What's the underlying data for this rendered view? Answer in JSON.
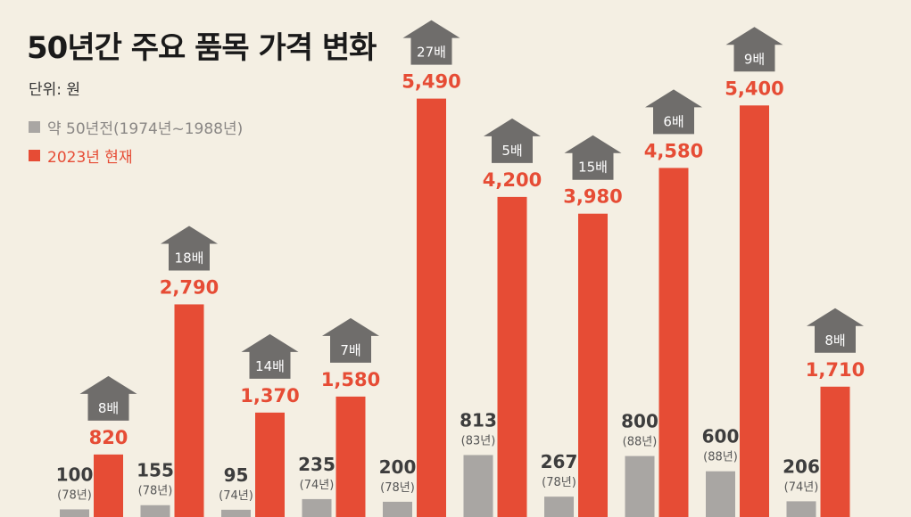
{
  "chart_data": {
    "type": "bar",
    "title": "50년간 주요 품목 가격 변화",
    "unit_label": "단위: 원",
    "colors": {
      "old": "#a9a6a3",
      "current": "#e64c35",
      "arrow": "#6f6d6b",
      "old_text": "#3d3d3d"
    },
    "series": [
      {
        "name": "약 50년전(1974년~1988년)",
        "values": [
          100,
          155,
          95,
          235,
          200,
          813,
          267,
          800,
          600,
          206
        ],
        "labels": [
          "100",
          "155",
          "95",
          "235",
          "200",
          "813",
          "267",
          "800",
          "600",
          "206"
        ],
        "years": [
          "(78년)",
          "(78년)",
          "(74년)",
          "(74년)",
          "(78년)",
          "(83년)",
          "(78년)",
          "(88년)",
          "(88년)",
          "(74년)"
        ]
      },
      {
        "name": "2023년 현재",
        "values": [
          820,
          2790,
          1370,
          1580,
          5490,
          4200,
          3980,
          4580,
          5400,
          1710
        ],
        "labels": [
          "820",
          "2,790",
          "1,370",
          "1,580",
          "5,490",
          "4,200",
          "3,980",
          "4,580",
          "5,400",
          "1,710"
        ]
      }
    ],
    "multipliers": [
      "8배",
      "18배",
      "14배",
      "7배",
      "27배",
      "5배",
      "15배",
      "6배",
      "9배",
      "8배"
    ]
  }
}
